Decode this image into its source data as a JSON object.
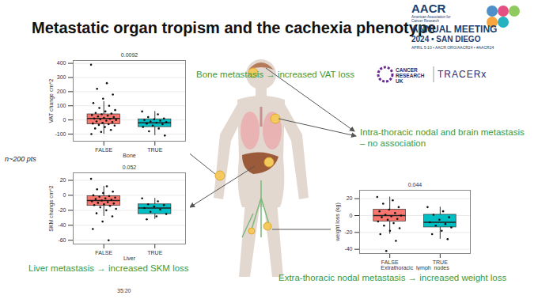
{
  "header": {
    "title": "Metastatic organ tropism and the cachexia phenotype",
    "logo": {
      "brand": "AACR",
      "org": "American Association for Cancer Research",
      "event": "ANNUAL MEETING",
      "year_place": "2024 • SAN DIEGO",
      "details": "APRIL 5-10 • AACR.ORG/AACR24 • #AACR24"
    },
    "partners": [
      "CANCER RESEARCH UK",
      "TRACERx"
    ]
  },
  "annotations": {
    "sample": "n~200 pts",
    "bone": "Bone metastasis → increased VAT loss",
    "thoracic": "Intra-thoracic nodal and brain metastasis – no association",
    "liver": "Liver metastasis → increased SKM loss",
    "extrathoracic": "Extra-thoracic nodal metastasis → increased weight loss",
    "timestamp": "35:20"
  },
  "chart_data": [
    {
      "type": "box",
      "x_label": "Bone",
      "y_label": "VAT change cm^2",
      "p_value": "0.0092",
      "categories": [
        "FALSE",
        "TRUE"
      ],
      "colors": [
        "#F8766D",
        "#00BFC4"
      ],
      "boxes": [
        {
          "whisker_low": -100,
          "q1": -30,
          "median": 10,
          "q3": 40,
          "whisker_high": 130
        },
        {
          "whisker_low": -110,
          "q1": -50,
          "median": -20,
          "q3": 5,
          "whisker_high": 60
        }
      ],
      "points": [
        [
          390,
          260,
          220,
          180,
          150,
          120,
          100,
          85,
          70,
          60,
          50,
          45,
          40,
          35,
          30,
          25,
          20,
          15,
          10,
          8,
          5,
          0,
          -5,
          -10,
          -15,
          -20,
          -25,
          -30,
          -35,
          -40,
          -50,
          -60,
          -70,
          -85,
          -100
        ],
        [
          60,
          40,
          20,
          10,
          5,
          0,
          -5,
          -10,
          -15,
          -20,
          -25,
          -30,
          -40,
          -50,
          -60,
          -80,
          -110
        ]
      ],
      "ylim": [
        -150,
        420
      ],
      "yticks": [
        -100,
        0,
        100,
        200,
        300,
        400
      ],
      "grid": true
    },
    {
      "type": "box",
      "x_label": "Liver",
      "y_label": "SKM change cm^2",
      "p_value": "0.052",
      "categories": [
        "FALSE",
        "TRUE"
      ],
      "colors": [
        "#F8766D",
        "#00BFC4"
      ],
      "boxes": [
        {
          "whisker_low": -28,
          "q1": -14,
          "median": -7,
          "q3": -1,
          "whisker_high": 12
        },
        {
          "whisker_low": -32,
          "q1": -25,
          "median": -17,
          "q3": -12,
          "whisker_high": -4
        }
      ],
      "points": [
        [
          22,
          12,
          8,
          5,
          3,
          0,
          -1,
          -2,
          -3,
          -4,
          -5,
          -6,
          -7,
          -8,
          -9,
          -10,
          -11,
          -12,
          -13,
          -14,
          -16,
          -18,
          -20,
          -24,
          -28,
          -35,
          -45,
          -60
        ],
        [
          -4,
          -8,
          -12,
          -13,
          -15,
          -17,
          -19,
          -22,
          -25,
          -28,
          -32
        ]
      ],
      "ylim": [
        -65,
        30
      ],
      "yticks": [
        -60,
        -40,
        -20,
        0,
        20
      ],
      "grid": true
    },
    {
      "type": "box",
      "x_label": "Extrathoracic_lymph_nodes",
      "y_label": "weight loss (kg)",
      "p_value": "0.044",
      "categories": [
        "FALSE",
        "TRUE"
      ],
      "colors": [
        "#F8766D",
        "#00BFC4"
      ],
      "boxes": [
        {
          "whisker_low": -22,
          "q1": -7,
          "median": 0,
          "q3": 7,
          "whisker_high": 22
        },
        {
          "whisker_low": -28,
          "q1": -14,
          "median": -8,
          "q3": 1,
          "whisker_high": 10
        }
      ],
      "points": [
        [
          22,
          18,
          14,
          10,
          7,
          5,
          3,
          1,
          0,
          -1,
          -2,
          -4,
          -5,
          -7,
          -9,
          -12,
          -15,
          -18,
          -22,
          -30,
          -42
        ],
        [
          10,
          5,
          1,
          -2,
          -5,
          -8,
          -10,
          -12,
          -14,
          -18,
          -22,
          -28
        ]
      ],
      "ylim": [
        -45,
        30
      ],
      "yticks": [
        -40,
        -20,
        0,
        20
      ],
      "grid": true
    }
  ]
}
